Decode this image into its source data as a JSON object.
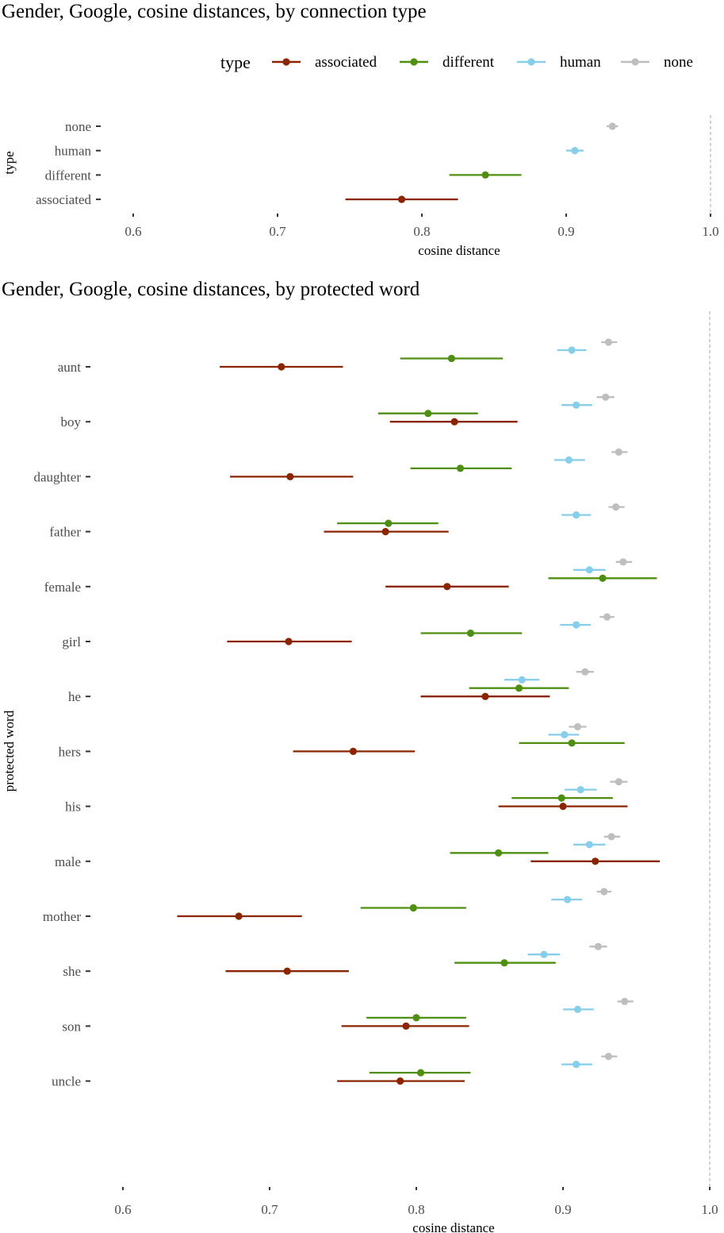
{
  "chart_data": [
    {
      "type": "errorbar",
      "title": "Gender, Google,  cosine distances, by connection type",
      "xlabel": "cosine distance",
      "ylabel": "type",
      "xlim": [
        0.58,
        1.0
      ],
      "xticks": [
        "0.6",
        "0.7",
        "0.8",
        "0.9",
        "1.0"
      ],
      "reference_line": 1.0,
      "legend": {
        "title": "type",
        "position": "top",
        "entries": [
          {
            "label": "associated",
            "color": "#8b2500"
          },
          {
            "label": "different",
            "color": "#4e8f12"
          },
          {
            "label": "human",
            "color": "#87ceeb"
          },
          {
            "label": "none",
            "color": "#bebebe"
          }
        ]
      },
      "categories": [
        "none",
        "human",
        "different",
        "associated"
      ],
      "series": [
        {
          "name": "none",
          "color": "#bebebe",
          "points": [
            {
              "y": "none",
              "mean": 0.932,
              "low": 0.928,
              "high": 0.936
            }
          ]
        },
        {
          "name": "human",
          "color": "#87ceeb",
          "points": [
            {
              "y": "human",
              "mean": 0.906,
              "low": 0.9,
              "high": 0.912
            }
          ]
        },
        {
          "name": "different",
          "color": "#4e8f12",
          "points": [
            {
              "y": "different",
              "mean": 0.844,
              "low": 0.819,
              "high": 0.869
            }
          ]
        },
        {
          "name": "associated",
          "color": "#8b2500",
          "points": [
            {
              "y": "associated",
              "mean": 0.786,
              "low": 0.747,
              "high": 0.825
            }
          ]
        }
      ]
    },
    {
      "type": "errorbar",
      "title": "Gender, Google, cosine distances, by protected word",
      "xlabel": "cosine distance",
      "ylabel": "protected word",
      "xlim": [
        0.58,
        1.0
      ],
      "xticks": [
        "0.6",
        "0.7",
        "0.8",
        "0.9",
        "1.0"
      ],
      "reference_line": 1.0,
      "categories": [
        "aunt",
        "boy",
        "daughter",
        "father",
        "female",
        "girl",
        "he",
        "hers",
        "his",
        "male",
        "mother",
        "she",
        "son",
        "uncle"
      ],
      "series": [
        {
          "name": "none",
          "color": "#bebebe",
          "points": [
            {
              "y": "aunt",
              "mean": 0.931,
              "low": 0.926,
              "high": 0.937
            },
            {
              "y": "boy",
              "mean": 0.929,
              "low": 0.923,
              "high": 0.935
            },
            {
              "y": "daughter",
              "mean": 0.938,
              "low": 0.933,
              "high": 0.944
            },
            {
              "y": "father",
              "mean": 0.936,
              "low": 0.931,
              "high": 0.942
            },
            {
              "y": "female",
              "mean": 0.941,
              "low": 0.936,
              "high": 0.947
            },
            {
              "y": "girl",
              "mean": 0.93,
              "low": 0.925,
              "high": 0.935
            },
            {
              "y": "he",
              "mean": 0.915,
              "low": 0.909,
              "high": 0.921
            },
            {
              "y": "hers",
              "mean": 0.91,
              "low": 0.904,
              "high": 0.916
            },
            {
              "y": "his",
              "mean": 0.938,
              "low": 0.932,
              "high": 0.944
            },
            {
              "y": "male",
              "mean": 0.933,
              "low": 0.928,
              "high": 0.939
            },
            {
              "y": "mother",
              "mean": 0.928,
              "low": 0.923,
              "high": 0.933
            },
            {
              "y": "she",
              "mean": 0.924,
              "low": 0.918,
              "high": 0.93
            },
            {
              "y": "son",
              "mean": 0.942,
              "low": 0.937,
              "high": 0.948
            },
            {
              "y": "uncle",
              "mean": 0.931,
              "low": 0.926,
              "high": 0.937
            }
          ]
        },
        {
          "name": "human",
          "color": "#87ceeb",
          "points": [
            {
              "y": "aunt",
              "mean": 0.906,
              "low": 0.896,
              "high": 0.916
            },
            {
              "y": "boy",
              "mean": 0.909,
              "low": 0.899,
              "high": 0.92
            },
            {
              "y": "daughter",
              "mean": 0.904,
              "low": 0.894,
              "high": 0.915
            },
            {
              "y": "father",
              "mean": 0.909,
              "low": 0.899,
              "high": 0.919
            },
            {
              "y": "female",
              "mean": 0.918,
              "low": 0.907,
              "high": 0.929
            },
            {
              "y": "girl",
              "mean": 0.909,
              "low": 0.898,
              "high": 0.919
            },
            {
              "y": "he",
              "mean": 0.872,
              "low": 0.86,
              "high": 0.884
            },
            {
              "y": "hers",
              "mean": 0.901,
              "low": 0.89,
              "high": 0.911
            },
            {
              "y": "his",
              "mean": 0.912,
              "low": 0.901,
              "high": 0.923
            },
            {
              "y": "male",
              "mean": 0.918,
              "low": 0.907,
              "high": 0.929
            },
            {
              "y": "mother",
              "mean": 0.903,
              "low": 0.892,
              "high": 0.913
            },
            {
              "y": "she",
              "mean": 0.887,
              "low": 0.876,
              "high": 0.898
            },
            {
              "y": "son",
              "mean": 0.91,
              "low": 0.9,
              "high": 0.921
            },
            {
              "y": "uncle",
              "mean": 0.909,
              "low": 0.899,
              "high": 0.92
            }
          ]
        },
        {
          "name": "different",
          "color": "#4e8f12",
          "points": [
            {
              "y": "aunt",
              "mean": 0.824,
              "low": 0.789,
              "high": 0.859
            },
            {
              "y": "boy",
              "mean": 0.808,
              "low": 0.774,
              "high": 0.842
            },
            {
              "y": "daughter",
              "mean": 0.83,
              "low": 0.796,
              "high": 0.865
            },
            {
              "y": "father",
              "mean": 0.781,
              "low": 0.746,
              "high": 0.815
            },
            {
              "y": "female",
              "mean": 0.927,
              "low": 0.89,
              "high": 0.964
            },
            {
              "y": "girl",
              "mean": 0.837,
              "low": 0.803,
              "high": 0.872
            },
            {
              "y": "he",
              "mean": 0.87,
              "low": 0.836,
              "high": 0.904
            },
            {
              "y": "hers",
              "mean": 0.906,
              "low": 0.87,
              "high": 0.942
            },
            {
              "y": "his",
              "mean": 0.899,
              "low": 0.865,
              "high": 0.934
            },
            {
              "y": "male",
              "mean": 0.856,
              "low": 0.823,
              "high": 0.89
            },
            {
              "y": "mother",
              "mean": 0.798,
              "low": 0.762,
              "high": 0.834
            },
            {
              "y": "she",
              "mean": 0.86,
              "low": 0.826,
              "high": 0.895
            },
            {
              "y": "son",
              "mean": 0.8,
              "low": 0.766,
              "high": 0.834
            },
            {
              "y": "uncle",
              "mean": 0.803,
              "low": 0.768,
              "high": 0.837
            }
          ]
        },
        {
          "name": "associated",
          "color": "#8b2500",
          "points": [
            {
              "y": "aunt",
              "mean": 0.708,
              "low": 0.666,
              "high": 0.75
            },
            {
              "y": "boy",
              "mean": 0.826,
              "low": 0.782,
              "high": 0.869
            },
            {
              "y": "daughter",
              "mean": 0.714,
              "low": 0.673,
              "high": 0.757
            },
            {
              "y": "father",
              "mean": 0.779,
              "low": 0.737,
              "high": 0.822
            },
            {
              "y": "female",
              "mean": 0.821,
              "low": 0.779,
              "high": 0.863
            },
            {
              "y": "girl",
              "mean": 0.713,
              "low": 0.671,
              "high": 0.756
            },
            {
              "y": "he",
              "mean": 0.847,
              "low": 0.803,
              "high": 0.891
            },
            {
              "y": "hers",
              "mean": 0.757,
              "low": 0.716,
              "high": 0.799
            },
            {
              "y": "his",
              "mean": 0.9,
              "low": 0.856,
              "high": 0.944
            },
            {
              "y": "male",
              "mean": 0.922,
              "low": 0.878,
              "high": 0.966
            },
            {
              "y": "mother",
              "mean": 0.679,
              "low": 0.637,
              "high": 0.722
            },
            {
              "y": "she",
              "mean": 0.712,
              "low": 0.67,
              "high": 0.754
            },
            {
              "y": "son",
              "mean": 0.793,
              "low": 0.749,
              "high": 0.836
            },
            {
              "y": "uncle",
              "mean": 0.789,
              "low": 0.746,
              "high": 0.833
            }
          ]
        }
      ]
    }
  ]
}
